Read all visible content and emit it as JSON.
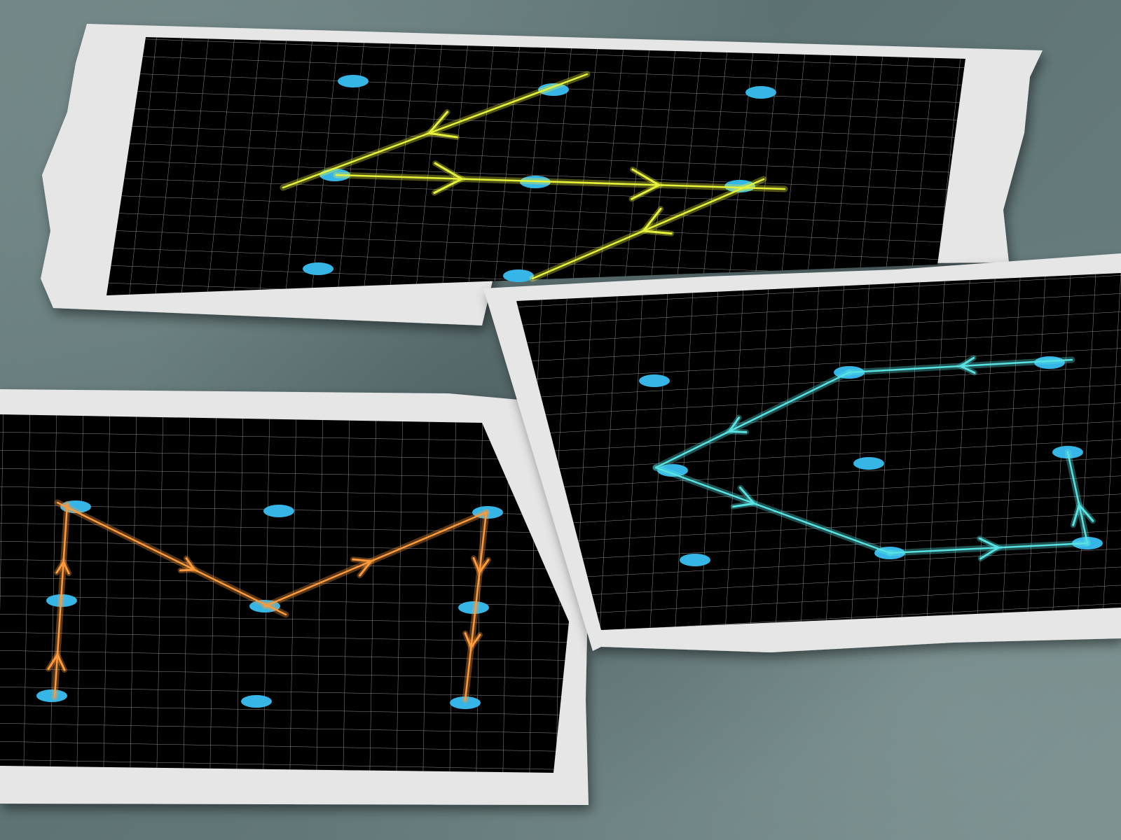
{
  "scene": {
    "description_free": true,
    "background_color": "#647879",
    "paper_color": "#e6e6e6",
    "screen_color": "#000000",
    "grid_line_color": "#ffffff",
    "dot_color": "#36b6e6"
  },
  "cards": [
    {
      "id": "top-left",
      "pattern_color": "#e7f23a",
      "pattern_shape": "lightning-z",
      "dot_grid": "3x3",
      "dots_in_pattern": 4
    },
    {
      "id": "bottom-left",
      "pattern_color": "#ff9a3c",
      "pattern_shape": "letter-m",
      "dot_grid": "3x3",
      "dots_in_pattern": 5
    },
    {
      "id": "right",
      "pattern_color": "#59e2e2",
      "pattern_shape": "arrow-loop",
      "dot_grid": "3x3",
      "dots_in_pattern": 6
    }
  ]
}
